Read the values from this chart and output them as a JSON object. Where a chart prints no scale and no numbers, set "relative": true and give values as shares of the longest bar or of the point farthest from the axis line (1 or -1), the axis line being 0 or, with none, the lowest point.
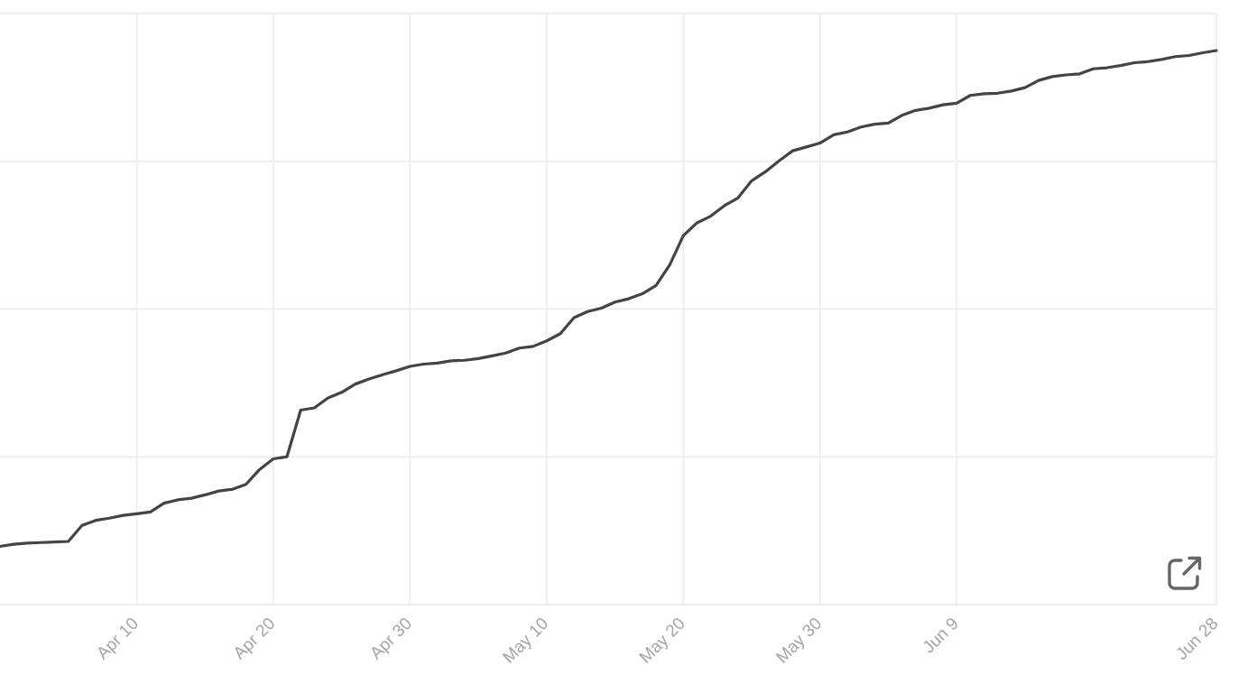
{
  "chart_data": {
    "type": "line",
    "relative": true,
    "color": "#444444",
    "grid": true,
    "xlim": [
      "--03-31",
      "--06-28"
    ],
    "xticks": [
      {
        "value": "--04-10",
        "label": "Apr 10"
      },
      {
        "value": "--04-20",
        "label": "Apr 20"
      },
      {
        "value": "--04-30",
        "label": "Apr 30"
      },
      {
        "value": "--05-10",
        "label": "May 10"
      },
      {
        "value": "--05-20",
        "label": "May 20"
      },
      {
        "value": "--05-30",
        "label": "May 30"
      },
      {
        "value": "--06-09",
        "label": "Jun 9"
      },
      {
        "value": "--06-28",
        "label": "Jun 28"
      }
    ],
    "x": [
      "--03-31",
      "--04-01",
      "--04-02",
      "--04-03",
      "--04-04",
      "--04-05",
      "--04-06",
      "--04-07",
      "--04-08",
      "--04-09",
      "--04-10",
      "--04-11",
      "--04-12",
      "--04-13",
      "--04-14",
      "--04-15",
      "--04-16",
      "--04-17",
      "--04-18",
      "--04-19",
      "--04-20",
      "--04-21",
      "--04-22",
      "--04-23",
      "--04-24",
      "--04-25",
      "--04-26",
      "--04-27",
      "--04-28",
      "--04-29",
      "--04-30",
      "--05-01",
      "--05-02",
      "--05-03",
      "--05-04",
      "--05-05",
      "--05-06",
      "--05-07",
      "--05-08",
      "--05-09",
      "--05-10",
      "--05-11",
      "--05-12",
      "--05-13",
      "--05-14",
      "--05-15",
      "--05-16",
      "--05-17",
      "--05-18",
      "--05-19",
      "--05-20",
      "--05-21",
      "--05-22",
      "--05-23",
      "--05-24",
      "--05-25",
      "--05-26",
      "--05-27",
      "--05-28",
      "--05-29",
      "--05-30",
      "--05-31",
      "--06-01",
      "--06-02",
      "--06-03",
      "--06-04",
      "--06-05",
      "--06-06",
      "--06-07",
      "--06-08",
      "--06-09",
      "--06-10",
      "--06-11",
      "--06-12",
      "--06-13",
      "--06-14",
      "--06-15",
      "--06-16",
      "--06-17",
      "--06-18",
      "--06-19",
      "--06-20",
      "--06-21",
      "--06-22",
      "--06-23",
      "--06-24",
      "--06-25",
      "--06-26",
      "--06-27",
      "--06-28"
    ],
    "values": [
      0.105,
      0.109,
      0.111,
      0.112,
      0.113,
      0.114,
      0.143,
      0.152,
      0.156,
      0.161,
      0.164,
      0.167,
      0.183,
      0.189,
      0.192,
      0.198,
      0.205,
      0.208,
      0.217,
      0.244,
      0.263,
      0.267,
      0.351,
      0.355,
      0.373,
      0.383,
      0.398,
      0.407,
      0.415,
      0.422,
      0.43,
      0.434,
      0.436,
      0.44,
      0.441,
      0.444,
      0.449,
      0.454,
      0.463,
      0.466,
      0.476,
      0.489,
      0.518,
      0.529,
      0.535,
      0.546,
      0.552,
      0.561,
      0.576,
      0.613,
      0.666,
      0.689,
      0.701,
      0.72,
      0.734,
      0.765,
      0.781,
      0.801,
      0.819,
      0.826,
      0.833,
      0.848,
      0.853,
      0.862,
      0.867,
      0.869,
      0.883,
      0.892,
      0.896,
      0.902,
      0.905,
      0.919,
      0.922,
      0.923,
      0.927,
      0.933,
      0.946,
      0.953,
      0.956,
      0.958,
      0.967,
      0.969,
      0.973,
      0.978,
      0.98,
      0.984,
      0.989,
      0.991,
      0.996,
      1
    ]
  }
}
